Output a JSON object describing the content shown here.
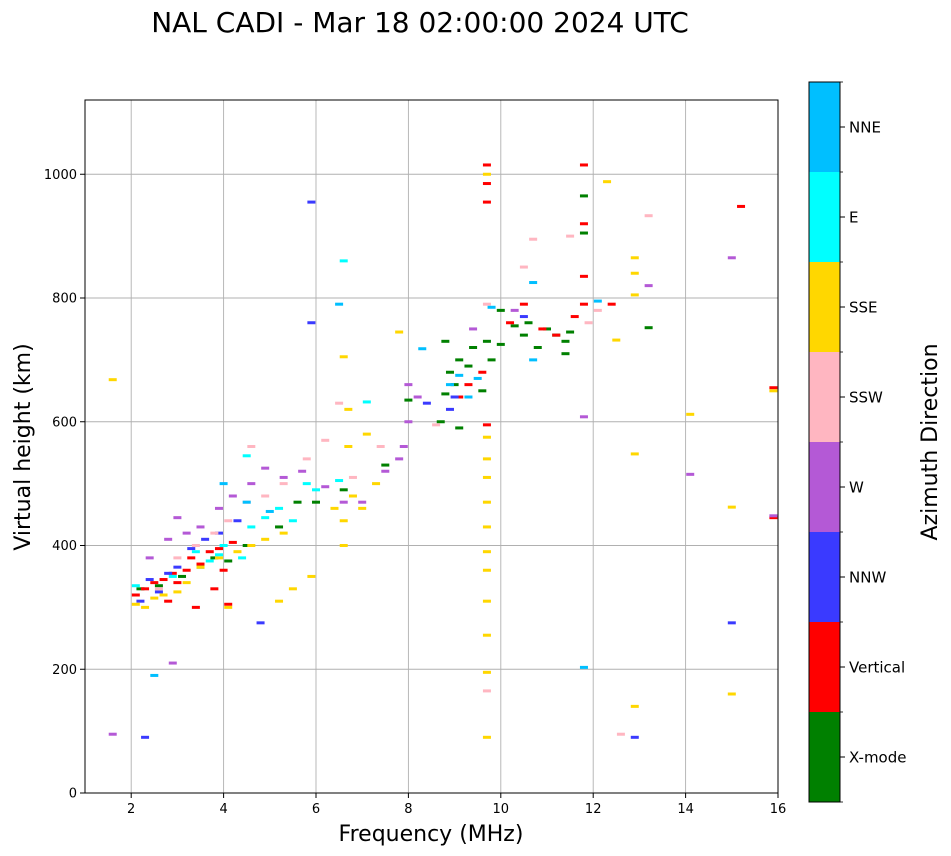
{
  "chart_data": {
    "type": "scatter",
    "title": "NAL CADI - Mar 18 02:00:00 2024 UTC",
    "xlabel": "Frequency (MHz)",
    "ylabel": "Virtual height (km)",
    "xlim": [
      1,
      16
    ],
    "ylim": [
      0,
      1120
    ],
    "xticks": [
      2,
      4,
      6,
      8,
      10,
      12,
      14,
      16
    ],
    "yticks": [
      0,
      200,
      400,
      600,
      800,
      1000
    ],
    "grid": true,
    "colorbar": {
      "label": "Azimuth Direction",
      "categories": [
        {
          "name": "X-mode",
          "color": "#008000"
        },
        {
          "name": "Vertical",
          "color": "#ff0000"
        },
        {
          "name": "NNW",
          "color": "#3a3aff"
        },
        {
          "name": "W",
          "color": "#b459d6"
        },
        {
          "name": "SSW",
          "color": "#ffb6c1"
        },
        {
          "name": "SSE",
          "color": "#ffd700"
        },
        {
          "name": "E",
          "color": "#00ffff"
        },
        {
          "name": "NNE",
          "color": "#00bfff"
        }
      ]
    },
    "series": [
      {
        "name": "X-mode",
        "points": [
          [
            2.2,
            330
          ],
          [
            2.6,
            335
          ],
          [
            3.1,
            350
          ],
          [
            3.5,
            365
          ],
          [
            3.8,
            380
          ],
          [
            4.1,
            375
          ],
          [
            4.5,
            400
          ],
          [
            5.2,
            430
          ],
          [
            5.6,
            470
          ],
          [
            6.0,
            470
          ],
          [
            6.6,
            490
          ],
          [
            7.5,
            530
          ],
          [
            8.0,
            635
          ],
          [
            8.8,
            645
          ],
          [
            8.9,
            680
          ],
          [
            9.0,
            660
          ],
          [
            9.1,
            700
          ],
          [
            9.3,
            690
          ],
          [
            9.4,
            720
          ],
          [
            9.6,
            650
          ],
          [
            9.7,
            730
          ],
          [
            9.8,
            700
          ],
          [
            10.0,
            725
          ],
          [
            10.3,
            755
          ],
          [
            10.5,
            740
          ],
          [
            10.6,
            760
          ],
          [
            10.8,
            720
          ],
          [
            11.0,
            750
          ],
          [
            11.2,
            740
          ],
          [
            11.4,
            730
          ],
          [
            11.5,
            745
          ],
          [
            11.8,
            965
          ],
          [
            11.8,
            905
          ],
          [
            13.2,
            752
          ],
          [
            9.1,
            590
          ],
          [
            8.7,
            600
          ],
          [
            8.8,
            730
          ],
          [
            10.0,
            780
          ],
          [
            11.4,
            710
          ]
        ]
      },
      {
        "name": "Vertical",
        "points": [
          [
            2.1,
            320
          ],
          [
            2.3,
            330
          ],
          [
            2.5,
            340
          ],
          [
            2.7,
            345
          ],
          [
            2.9,
            355
          ],
          [
            3.0,
            340
          ],
          [
            3.2,
            360
          ],
          [
            3.3,
            380
          ],
          [
            3.5,
            370
          ],
          [
            3.7,
            390
          ],
          [
            3.9,
            395
          ],
          [
            4.0,
            360
          ],
          [
            4.2,
            405
          ],
          [
            3.4,
            300
          ],
          [
            2.8,
            310
          ],
          [
            3.8,
            330
          ],
          [
            4.1,
            305
          ],
          [
            9.1,
            640
          ],
          [
            9.3,
            660
          ],
          [
            9.6,
            680
          ],
          [
            9.7,
            1015
          ],
          [
            9.7,
            985
          ],
          [
            9.7,
            955
          ],
          [
            9.7,
            595
          ],
          [
            10.2,
            760
          ],
          [
            10.5,
            790
          ],
          [
            10.9,
            750
          ],
          [
            11.2,
            740
          ],
          [
            11.6,
            770
          ],
          [
            11.8,
            790
          ],
          [
            11.8,
            1015
          ],
          [
            11.8,
            920
          ],
          [
            11.8,
            835
          ],
          [
            12.4,
            790
          ],
          [
            15.2,
            948
          ],
          [
            15.9,
            655
          ],
          [
            15.9,
            445
          ]
        ]
      },
      {
        "name": "NNW",
        "points": [
          [
            2.2,
            310
          ],
          [
            2.4,
            345
          ],
          [
            2.6,
            325
          ],
          [
            2.8,
            355
          ],
          [
            3.0,
            365
          ],
          [
            3.3,
            395
          ],
          [
            3.6,
            410
          ],
          [
            3.9,
            420
          ],
          [
            4.3,
            440
          ],
          [
            8.4,
            630
          ],
          [
            8.9,
            620
          ],
          [
            9.0,
            640
          ],
          [
            10.5,
            770
          ],
          [
            15.0,
            275
          ],
          [
            12.9,
            90
          ],
          [
            2.3,
            90
          ],
          [
            4.8,
            275
          ],
          [
            5.9,
            955
          ],
          [
            5.9,
            760
          ]
        ]
      },
      {
        "name": "W",
        "points": [
          [
            1.6,
            95
          ],
          [
            2.4,
            380
          ],
          [
            2.8,
            410
          ],
          [
            3.0,
            445
          ],
          [
            3.2,
            420
          ],
          [
            3.5,
            430
          ],
          [
            3.9,
            460
          ],
          [
            4.2,
            480
          ],
          [
            4.6,
            500
          ],
          [
            4.9,
            525
          ],
          [
            5.3,
            510
          ],
          [
            5.7,
            520
          ],
          [
            6.2,
            495
          ],
          [
            6.6,
            470
          ],
          [
            7.0,
            470
          ],
          [
            7.5,
            520
          ],
          [
            7.8,
            540
          ],
          [
            7.9,
            560
          ],
          [
            8.0,
            600
          ],
          [
            8.0,
            660
          ],
          [
            8.2,
            640
          ],
          [
            9.4,
            750
          ],
          [
            10.3,
            780
          ],
          [
            11.8,
            608
          ],
          [
            13.2,
            820
          ],
          [
            14.1,
            515
          ],
          [
            15.0,
            865
          ],
          [
            15.9,
            448
          ],
          [
            2.9,
            210
          ]
        ]
      },
      {
        "name": "SSW",
        "points": [
          [
            2.6,
            330
          ],
          [
            3.0,
            380
          ],
          [
            3.4,
            400
          ],
          [
            3.8,
            420
          ],
          [
            4.1,
            440
          ],
          [
            4.5,
            470
          ],
          [
            4.9,
            480
          ],
          [
            5.3,
            500
          ],
          [
            5.8,
            540
          ],
          [
            6.2,
            570
          ],
          [
            6.5,
            630
          ],
          [
            6.8,
            510
          ],
          [
            7.4,
            560
          ],
          [
            8.6,
            595
          ],
          [
            9.7,
            790
          ],
          [
            9.7,
            165
          ],
          [
            10.7,
            895
          ],
          [
            11.5,
            900
          ],
          [
            12.1,
            780
          ],
          [
            12.6,
            95
          ],
          [
            13.2,
            933
          ],
          [
            11.9,
            760
          ],
          [
            10.5,
            850
          ],
          [
            4.6,
            560
          ]
        ]
      },
      {
        "name": "SSE",
        "points": [
          [
            1.6,
            668
          ],
          [
            2.1,
            305
          ],
          [
            2.3,
            300
          ],
          [
            2.5,
            315
          ],
          [
            2.7,
            320
          ],
          [
            3.0,
            325
          ],
          [
            3.2,
            340
          ],
          [
            3.5,
            365
          ],
          [
            3.9,
            380
          ],
          [
            4.1,
            300
          ],
          [
            4.3,
            390
          ],
          [
            4.6,
            400
          ],
          [
            4.9,
            410
          ],
          [
            5.3,
            420
          ],
          [
            5.5,
            330
          ],
          [
            5.2,
            310
          ],
          [
            5.9,
            350
          ],
          [
            6.4,
            460
          ],
          [
            6.6,
            440
          ],
          [
            6.6,
            400
          ],
          [
            6.7,
            620
          ],
          [
            6.7,
            560
          ],
          [
            6.8,
            480
          ],
          [
            7.0,
            460
          ],
          [
            7.3,
            500
          ],
          [
            7.1,
            580
          ],
          [
            6.6,
            705
          ],
          [
            7.8,
            745
          ],
          [
            9.7,
            1000
          ],
          [
            9.7,
            90
          ],
          [
            9.7,
            195
          ],
          [
            9.7,
            255
          ],
          [
            9.7,
            310
          ],
          [
            9.7,
            360
          ],
          [
            9.7,
            390
          ],
          [
            9.7,
            430
          ],
          [
            9.7,
            470
          ],
          [
            9.7,
            510
          ],
          [
            9.7,
            540
          ],
          [
            9.7,
            575
          ],
          [
            12.3,
            988
          ],
          [
            12.5,
            732
          ],
          [
            12.9,
            865
          ],
          [
            12.9,
            840
          ],
          [
            12.9,
            805
          ],
          [
            12.9,
            548
          ],
          [
            12.9,
            140
          ],
          [
            14.1,
            612
          ],
          [
            15.0,
            160
          ],
          [
            15.0,
            462
          ],
          [
            15.9,
            650
          ]
        ]
      },
      {
        "name": "E",
        "points": [
          [
            2.1,
            335
          ],
          [
            2.9,
            350
          ],
          [
            3.4,
            390
          ],
          [
            3.7,
            375
          ],
          [
            3.9,
            385
          ],
          [
            4.0,
            400
          ],
          [
            4.4,
            380
          ],
          [
            4.6,
            430
          ],
          [
            4.9,
            445
          ],
          [
            5.2,
            460
          ],
          [
            5.5,
            440
          ],
          [
            5.8,
            500
          ],
          [
            6.0,
            490
          ],
          [
            6.5,
            505
          ],
          [
            7.1,
            632
          ],
          [
            6.6,
            860
          ],
          [
            4.5,
            545
          ]
        ]
      },
      {
        "name": "NNE",
        "points": [
          [
            2.5,
            190
          ],
          [
            4.0,
            500
          ],
          [
            4.5,
            470
          ],
          [
            5.0,
            455
          ],
          [
            6.5,
            790
          ],
          [
            8.3,
            718
          ],
          [
            8.9,
            660
          ],
          [
            9.1,
            675
          ],
          [
            9.3,
            640
          ],
          [
            9.5,
            670
          ],
          [
            9.8,
            785
          ],
          [
            10.7,
            825
          ],
          [
            10.7,
            700
          ],
          [
            11.8,
            203
          ],
          [
            12.1,
            795
          ]
        ]
      }
    ]
  }
}
